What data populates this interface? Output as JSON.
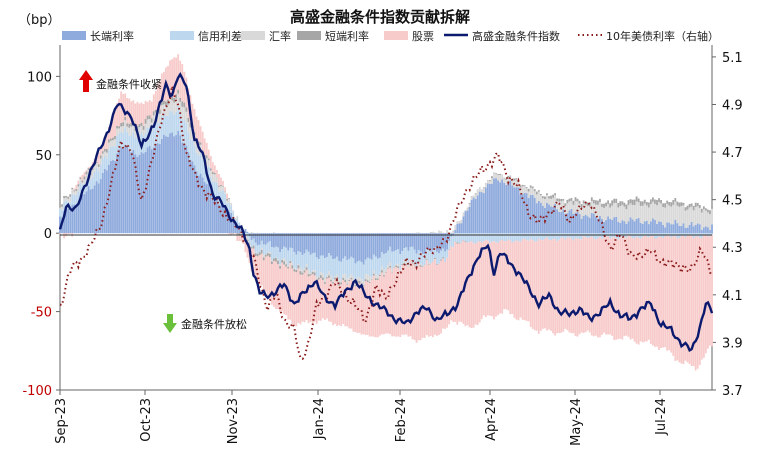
{
  "chart_data": {
    "type": "bar+line",
    "title": "高盛金融条件指数贡献拆解",
    "y_left_unit": "（bp）",
    "y_left_ticks": [
      100,
      50,
      0,
      -50,
      -100
    ],
    "y_left_range": [
      -100,
      120
    ],
    "y_right_ticks": [
      "5.1",
      "4.9",
      "4.7",
      "4.5",
      "4.3",
      "4.1",
      "3.9",
      "3.7"
    ],
    "y_right_range": [
      3.7,
      5.15
    ],
    "x_ticks": [
      "Sep-23",
      "Oct-23",
      "Nov-23",
      "Jan-24",
      "Feb-24",
      "Apr-24",
      "May-24",
      "Jul-24"
    ],
    "legend": [
      {
        "name": "长端利率",
        "kind": "bar",
        "color": "#8faadc"
      },
      {
        "name": "信用利差",
        "kind": "bar",
        "color": "#bdd7ee"
      },
      {
        "name": "汇率",
        "kind": "bar",
        "color": "#d9d9d9"
      },
      {
        "name": "短端利率",
        "kind": "bar",
        "color": "#a6a6a6"
      },
      {
        "name": "股票",
        "kind": "bar",
        "color": "#f8cbcb"
      },
      {
        "name": "高盛金融条件指数",
        "kind": "line",
        "color": "#0b1a6e"
      },
      {
        "name": "10年美债利率（右轴）",
        "kind": "dotted",
        "color": "#8b1a1a"
      }
    ],
    "annotations": {
      "tighten": "金融条件收紧",
      "loosen": "金融条件放松"
    },
    "anchors": {
      "index_line": [
        [
          0,
          0
        ],
        [
          3,
          18
        ],
        [
          8,
          15
        ],
        [
          15,
          40
        ],
        [
          22,
          60
        ],
        [
          28,
          82
        ],
        [
          35,
          75
        ],
        [
          40,
          55
        ],
        [
          47,
          72
        ],
        [
          52,
          95
        ],
        [
          55,
          88
        ],
        [
          58,
          100
        ],
        [
          62,
          95
        ],
        [
          66,
          60
        ],
        [
          70,
          50
        ],
        [
          75,
          25
        ],
        [
          80,
          18
        ],
        [
          85,
          8
        ],
        [
          90,
          0
        ],
        [
          93,
          -10
        ],
        [
          95,
          -25
        ],
        [
          98,
          -38
        ],
        [
          101,
          -40
        ],
        [
          105,
          -38
        ],
        [
          110,
          -33
        ],
        [
          115,
          -45
        ],
        [
          120,
          -38
        ],
        [
          125,
          -30
        ],
        [
          130,
          -42
        ],
        [
          135,
          -45
        ],
        [
          140,
          -38
        ],
        [
          145,
          -30
        ],
        [
          150,
          -40
        ],
        [
          155,
          -45
        ],
        [
          160,
          -50
        ],
        [
          165,
          -55
        ],
        [
          170,
          -58
        ],
        [
          175,
          -50
        ],
        [
          180,
          -48
        ],
        [
          185,
          -55
        ],
        [
          190,
          -52
        ],
        [
          195,
          -45
        ],
        [
          200,
          -30
        ],
        [
          205,
          -15
        ],
        [
          210,
          -8
        ],
        [
          213,
          -25
        ],
        [
          216,
          -12
        ],
        [
          220,
          -18
        ],
        [
          225,
          -25
        ],
        [
          230,
          -35
        ],
        [
          235,
          -45
        ],
        [
          240,
          -40
        ],
        [
          245,
          -50
        ],
        [
          250,
          -52
        ],
        [
          255,
          -48
        ],
        [
          260,
          -55
        ],
        [
          265,
          -50
        ],
        [
          270,
          -45
        ],
        [
          275,
          -52
        ],
        [
          280,
          -55
        ],
        [
          285,
          -48
        ],
        [
          290,
          -45
        ],
        [
          295,
          -58
        ],
        [
          300,
          -62
        ],
        [
          305,
          -70
        ],
        [
          310,
          -75
        ],
        [
          314,
          -60
        ],
        [
          317,
          -45
        ],
        [
          320,
          -50
        ]
      ],
      "treasury_10y": [
        [
          0,
          4.05
        ],
        [
          5,
          4.2
        ],
        [
          10,
          4.25
        ],
        [
          15,
          4.3
        ],
        [
          20,
          4.4
        ],
        [
          25,
          4.55
        ],
        [
          30,
          4.75
        ],
        [
          35,
          4.7
        ],
        [
          40,
          4.5
        ],
        [
          45,
          4.65
        ],
        [
          50,
          4.85
        ],
        [
          55,
          4.95
        ],
        [
          58,
          4.9
        ],
        [
          62,
          4.7
        ],
        [
          66,
          4.6
        ],
        [
          70,
          4.55
        ],
        [
          75,
          4.5
        ],
        [
          80,
          4.45
        ],
        [
          85,
          4.4
        ],
        [
          90,
          4.35
        ],
        [
          95,
          4.25
        ],
        [
          98,
          4.15
        ],
        [
          102,
          4.05
        ],
        [
          106,
          4.1
        ],
        [
          110,
          4.0
        ],
        [
          115,
          3.95
        ],
        [
          118,
          3.82
        ],
        [
          122,
          3.9
        ],
        [
          126,
          4.05
        ],
        [
          130,
          4.1
        ],
        [
          135,
          4.15
        ],
        [
          140,
          4.1
        ],
        [
          145,
          4.05
        ],
        [
          150,
          4.0
        ],
        [
          155,
          4.12
        ],
        [
          160,
          4.1
        ],
        [
          165,
          4.15
        ],
        [
          170,
          4.25
        ],
        [
          175,
          4.22
        ],
        [
          180,
          4.3
        ],
        [
          185,
          4.28
        ],
        [
          190,
          4.35
        ],
        [
          195,
          4.45
        ],
        [
          200,
          4.55
        ],
        [
          205,
          4.6
        ],
        [
          210,
          4.65
        ],
        [
          215,
          4.68
        ],
        [
          220,
          4.6
        ],
        [
          225,
          4.55
        ],
        [
          230,
          4.45
        ],
        [
          235,
          4.4
        ],
        [
          240,
          4.45
        ],
        [
          245,
          4.48
        ],
        [
          250,
          4.42
        ],
        [
          255,
          4.45
        ],
        [
          260,
          4.5
        ],
        [
          265,
          4.4
        ],
        [
          270,
          4.3
        ],
        [
          275,
          4.35
        ],
        [
          280,
          4.28
        ],
        [
          285,
          4.25
        ],
        [
          290,
          4.3
        ],
        [
          295,
          4.22
        ],
        [
          300,
          4.25
        ],
        [
          305,
          4.2
        ],
        [
          310,
          4.22
        ],
        [
          315,
          4.28
        ],
        [
          320,
          4.2
        ]
      ],
      "long_rate_bar": [
        [
          0,
          10
        ],
        [
          20,
          35
        ],
        [
          30,
          55
        ],
        [
          40,
          50
        ],
        [
          50,
          60
        ],
        [
          58,
          65
        ],
        [
          65,
          45
        ],
        [
          75,
          25
        ],
        [
          85,
          10
        ],
        [
          90,
          2
        ],
        [
          95,
          -5
        ],
        [
          110,
          -10
        ],
        [
          130,
          -15
        ],
        [
          150,
          -18
        ],
        [
          160,
          -12
        ],
        [
          170,
          -10
        ],
        [
          180,
          -12
        ],
        [
          190,
          -10
        ],
        [
          195,
          5
        ],
        [
          205,
          25
        ],
        [
          215,
          35
        ],
        [
          225,
          28
        ],
        [
          235,
          20
        ],
        [
          245,
          15
        ],
        [
          255,
          12
        ],
        [
          265,
          10
        ],
        [
          275,
          8
        ],
        [
          285,
          8
        ],
        [
          300,
          6
        ],
        [
          310,
          5
        ],
        [
          320,
          4
        ]
      ],
      "credit_bar": [
        [
          0,
          5
        ],
        [
          30,
          10
        ],
        [
          60,
          15
        ],
        [
          80,
          8
        ],
        [
          95,
          -5
        ],
        [
          130,
          -12
        ],
        [
          160,
          -10
        ],
        [
          190,
          -6
        ],
        [
          220,
          -5
        ],
        [
          260,
          -3
        ],
        [
          320,
          -2
        ]
      ],
      "fx_bar": [
        [
          0,
          2
        ],
        [
          40,
          5
        ],
        [
          60,
          8
        ],
        [
          90,
          0
        ],
        [
          150,
          -3
        ],
        [
          200,
          2
        ],
        [
          250,
          6
        ],
        [
          280,
          10
        ],
        [
          300,
          12
        ],
        [
          320,
          10
        ]
      ],
      "short_bar": [
        [
          0,
          1
        ],
        [
          60,
          3
        ],
        [
          100,
          -2
        ],
        [
          200,
          0
        ],
        [
          280,
          3
        ],
        [
          320,
          2
        ]
      ],
      "equity_bar": [
        [
          0,
          -2
        ],
        [
          20,
          5
        ],
        [
          30,
          18
        ],
        [
          45,
          10
        ],
        [
          55,
          25
        ],
        [
          62,
          20
        ],
        [
          70,
          10
        ],
        [
          85,
          0
        ],
        [
          95,
          -15
        ],
        [
          105,
          -28
        ],
        [
          115,
          -35
        ],
        [
          130,
          -25
        ],
        [
          145,
          -30
        ],
        [
          160,
          -40
        ],
        [
          175,
          -48
        ],
        [
          190,
          -45
        ],
        [
          200,
          -55
        ],
        [
          210,
          -48
        ],
        [
          220,
          -45
        ],
        [
          235,
          -58
        ],
        [
          250,
          -60
        ],
        [
          265,
          -62
        ],
        [
          280,
          -65
        ],
        [
          295,
          -70
        ],
        [
          305,
          -80
        ],
        [
          312,
          -84
        ],
        [
          320,
          -70
        ]
      ]
    },
    "n_days": 321
  }
}
